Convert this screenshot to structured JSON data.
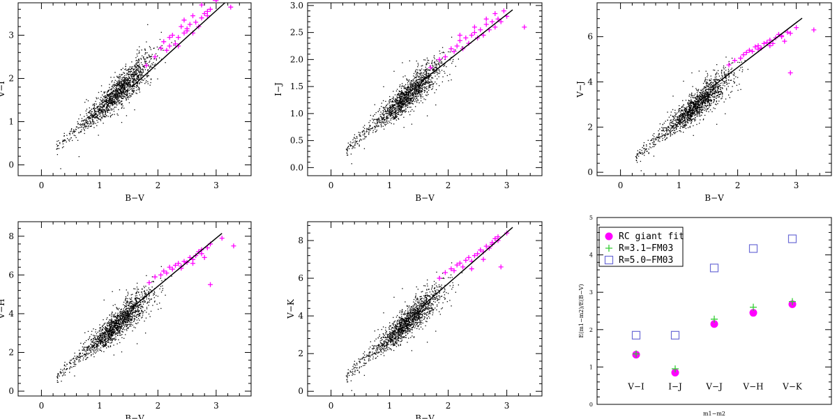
{
  "colors": {
    "rc_giant": "#ff00ff",
    "field_star": "#000000",
    "fm03_r31": "#33cc33",
    "fm03_r50": "#6b6bd6",
    "fit_line": "#000000"
  },
  "chart_data": [
    {
      "type": "scatter",
      "id": "v_i",
      "xlabel": "B−V",
      "ylabel": "V−I",
      "xlim": [
        -0.4,
        3.6
      ],
      "ylim": [
        -0.25,
        3.75
      ],
      "xticks": [
        "0",
        "1",
        "2",
        "3"
      ],
      "yticks": [
        "0",
        "1",
        "2",
        "3"
      ],
      "field_cloud": {
        "color": "black",
        "points_approx": 1500,
        "x_range": [
          0.25,
          2.6
        ],
        "y_at_x0_2": 0.33,
        "slope": 1.23
      },
      "series": [
        {
          "marker": "plus",
          "color": "magenta",
          "x": [
            1.8,
            1.95,
            2.05,
            2.1,
            2.15,
            2.2,
            2.25,
            2.3,
            2.35,
            2.4,
            2.45,
            2.5,
            2.55,
            2.6,
            2.65,
            2.7,
            2.75,
            2.8,
            2.85,
            2.9,
            3.0,
            3.25,
            2.35,
            2.45,
            2.6,
            2.75,
            2.85,
            2.95,
            2.2,
            2.5
          ],
          "y": [
            2.3,
            2.5,
            2.7,
            2.85,
            2.65,
            2.95,
            3.0,
            2.8,
            2.95,
            3.2,
            3.05,
            3.1,
            3.25,
            3.05,
            3.3,
            3.2,
            3.4,
            3.5,
            3.45,
            3.6,
            3.8,
            3.65,
            2.75,
            3.35,
            3.45,
            3.7,
            3.55,
            3.85,
            2.75,
            3.15
          ]
        }
      ],
      "fit_line": {
        "x": [
          1.55,
          3.15
        ],
        "y": [
          1.8,
          3.75
        ]
      }
    },
    {
      "type": "scatter",
      "id": "i_j",
      "xlabel": "B−V",
      "ylabel": "I−J",
      "xlim": [
        -0.4,
        3.6
      ],
      "ylim": [
        -0.15,
        3.05
      ],
      "xticks": [
        "0",
        "1",
        "2",
        "3"
      ],
      "yticks": [
        "0.0",
        "0.5",
        "1.0",
        "1.5",
        "2.0",
        "2.5",
        "3.0"
      ],
      "field_cloud": {
        "color": "black",
        "points_approx": 1500,
        "x_range": [
          0.25,
          2.6
        ],
        "y_at_x0_2": 0.3,
        "slope": 0.95
      },
      "series": [
        {
          "marker": "plus",
          "color": "magenta",
          "x": [
            1.7,
            1.85,
            1.95,
            2.05,
            2.1,
            2.15,
            2.2,
            2.25,
            2.3,
            2.35,
            2.4,
            2.45,
            2.5,
            2.55,
            2.6,
            2.65,
            2.7,
            2.75,
            2.8,
            2.85,
            2.9,
            3.0,
            3.3,
            2.2,
            2.45,
            2.65,
            2.8,
            2.95
          ],
          "y": [
            1.85,
            2.0,
            2.05,
            2.2,
            2.15,
            2.25,
            2.35,
            2.2,
            2.4,
            2.3,
            2.45,
            2.5,
            2.4,
            2.55,
            2.45,
            2.65,
            2.55,
            2.7,
            2.6,
            2.75,
            2.7,
            2.8,
            2.6,
            2.45,
            2.6,
            2.75,
            2.85,
            2.9
          ]
        }
      ],
      "fit_line": {
        "x": [
          1.55,
          3.1
        ],
        "y": [
          1.6,
          2.92
        ]
      }
    },
    {
      "type": "scatter",
      "id": "v_j",
      "xlabel": "B−V",
      "ylabel": "V−J",
      "xlim": [
        -0.4,
        3.6
      ],
      "ylim": [
        -0.15,
        7.5
      ],
      "xticks": [
        "0",
        "1",
        "2",
        "3"
      ],
      "yticks": [
        "0",
        "2",
        "4",
        "6"
      ],
      "field_cloud": {
        "color": "black",
        "points_approx": 1500,
        "x_range": [
          0.25,
          2.6
        ],
        "y_at_x0_2": 0.6,
        "slope": 2.2
      },
      "series": [
        {
          "marker": "plus",
          "color": "magenta",
          "x": [
            1.85,
            1.95,
            2.05,
            2.1,
            2.15,
            2.2,
            2.25,
            2.3,
            2.35,
            2.4,
            2.45,
            2.5,
            2.55,
            2.6,
            2.65,
            2.7,
            2.75,
            2.8,
            2.85,
            2.9,
            3.0,
            3.3,
            2.35,
            2.55,
            2.75,
            2.9
          ],
          "y": [
            4.75,
            4.95,
            5.05,
            5.2,
            5.3,
            5.4,
            5.35,
            5.55,
            5.6,
            5.5,
            5.7,
            5.75,
            5.85,
            5.7,
            5.95,
            6.1,
            6.0,
            5.8,
            6.2,
            4.4,
            6.4,
            6.3,
            5.45,
            5.6,
            6.05,
            6.15
          ]
        }
      ],
      "fit_line": {
        "x": [
          1.55,
          3.1
        ],
        "y": [
          3.75,
          6.82
        ]
      }
    },
    {
      "type": "scatter",
      "id": "v_h",
      "xlabel": "B−V",
      "ylabel": "V−H",
      "xlim": [
        -0.4,
        3.6
      ],
      "ylim": [
        -0.25,
        8.75
      ],
      "xticks": [
        "0",
        "1",
        "2",
        "3"
      ],
      "yticks": [
        "0",
        "2",
        "4",
        "6",
        "8"
      ],
      "field_cloud": {
        "color": "black",
        "points_approx": 1500,
        "x_range": [
          0.25,
          2.6
        ],
        "y_at_x0_2": 0.65,
        "slope": 2.6
      },
      "series": [
        {
          "marker": "plus",
          "color": "magenta",
          "x": [
            1.85,
            1.95,
            2.05,
            2.1,
            2.15,
            2.2,
            2.25,
            2.3,
            2.35,
            2.4,
            2.45,
            2.5,
            2.55,
            2.6,
            2.65,
            2.7,
            2.75,
            2.8,
            2.85,
            2.9,
            3.1,
            3.3,
            2.4,
            2.6,
            2.75,
            2.9
          ],
          "y": [
            5.6,
            5.9,
            6.0,
            6.2,
            6.1,
            6.4,
            6.3,
            6.5,
            6.6,
            6.45,
            6.7,
            6.65,
            6.9,
            6.8,
            7.0,
            7.2,
            7.1,
            6.9,
            7.4,
            5.5,
            7.9,
            7.5,
            6.35,
            6.6,
            7.3,
            7.6
          ]
        }
      ],
      "fit_line": {
        "x": [
          1.55,
          3.1
        ],
        "y": [
          4.3,
          8.15
        ]
      }
    },
    {
      "type": "scatter",
      "id": "v_k",
      "xlabel": "B−V",
      "ylabel": "V−K",
      "xlim": [
        -0.4,
        3.6
      ],
      "ylim": [
        -0.25,
        9.0
      ],
      "xticks": [
        "0",
        "1",
        "2",
        "3"
      ],
      "yticks": [
        "0",
        "2",
        "4",
        "6",
        "8"
      ],
      "field_cloud": {
        "color": "black",
        "points_approx": 1500,
        "x_range": [
          0.25,
          2.6
        ],
        "y_at_x0_2": 0.7,
        "slope": 2.75
      },
      "series": [
        {
          "marker": "plus",
          "color": "magenta",
          "x": [
            1.85,
            1.95,
            2.05,
            2.1,
            2.15,
            2.2,
            2.25,
            2.3,
            2.35,
            2.4,
            2.45,
            2.5,
            2.55,
            2.6,
            2.65,
            2.7,
            2.75,
            2.8,
            2.85,
            2.9,
            3.0,
            2.4,
            2.6,
            2.75,
            2.85
          ],
          "y": [
            6.0,
            6.3,
            6.5,
            6.4,
            6.7,
            6.8,
            6.6,
            6.95,
            7.1,
            6.9,
            7.2,
            7.3,
            7.5,
            7.4,
            7.7,
            7.6,
            7.9,
            8.1,
            8.0,
            6.6,
            8.4,
            6.5,
            7.0,
            7.8,
            8.2
          ]
        }
      ],
      "fit_line": {
        "x": [
          1.55,
          3.1
        ],
        "y": [
          4.5,
          8.7
        ]
      }
    },
    {
      "type": "scatter",
      "id": "summary",
      "xlabel": "m1−m2",
      "ylabel": "E(m1−m2)/E(B−V)",
      "xlim": [
        0,
        6
      ],
      "ylim": [
        0,
        5
      ],
      "yticks": [
        "0",
        "1",
        "2",
        "3",
        "4",
        "5"
      ],
      "categories": [
        "V−I",
        "I−J",
        "V−J",
        "V−H",
        "V−K"
      ],
      "legend": {
        "placement": "top-left",
        "entries": [
          "RC giant fit",
          "R=3.1−FM03",
          "R=5.0−FM03"
        ]
      },
      "series": [
        {
          "name": "RC giant fit",
          "marker": "filled-circle",
          "color": "magenta",
          "values": [
            1.33,
            0.85,
            2.15,
            2.45,
            2.68
          ]
        },
        {
          "name": "R=3.1−FM03",
          "marker": "plus",
          "color": "green",
          "values": [
            1.35,
            0.95,
            2.28,
            2.6,
            2.75
          ]
        },
        {
          "name": "R=5.0−FM03",
          "marker": "open-square",
          "color": "blue",
          "values": [
            1.85,
            1.85,
            3.65,
            4.17,
            4.43
          ]
        }
      ]
    }
  ]
}
